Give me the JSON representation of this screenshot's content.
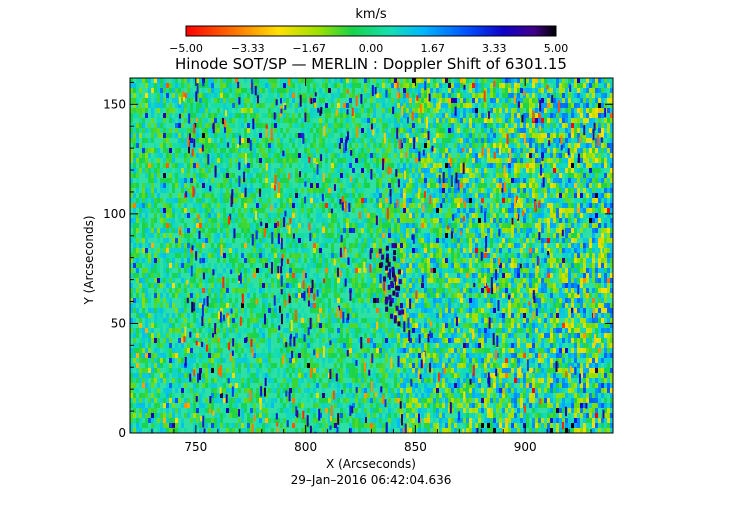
{
  "chart_data": {
    "type": "heatmap",
    "title": "Hinode SOT/SP — MERLIN : Doppler Shift of 6301.15",
    "xlabel": "X (Arcseconds)",
    "ylabel": "Y (Arcseconds)",
    "timestamp": "29–Jan–2016 06:42:04.636",
    "xlim": [
      720,
      940
    ],
    "ylim": [
      0,
      162
    ],
    "x_ticks": [
      {
        "value": 750,
        "label": "750"
      },
      {
        "value": 800,
        "label": "800"
      },
      {
        "value": 850,
        "label": "850"
      },
      {
        "value": 900,
        "label": "900"
      }
    ],
    "y_ticks": [
      {
        "value": 0,
        "label": "0"
      },
      {
        "value": 50,
        "label": "50"
      },
      {
        "value": 100,
        "label": "100"
      },
      {
        "value": 150,
        "label": "150"
      }
    ],
    "colorbar": {
      "unit": "km/s",
      "min": -5.0,
      "max": 5.0,
      "colormap": "rainbow (red → yellow → green → cyan → blue → black)",
      "ticks": [
        {
          "value": -5.0,
          "label": "−5.00"
        },
        {
          "value": -3.33,
          "label": "−3.33"
        },
        {
          "value": -1.67,
          "label": "−1.67"
        },
        {
          "value": 0.0,
          "label": "0.00"
        },
        {
          "value": 1.67,
          "label": "1.67"
        },
        {
          "value": 3.33,
          "label": "3.33"
        },
        {
          "value": 5.0,
          "label": "5.00"
        }
      ]
    }
  }
}
